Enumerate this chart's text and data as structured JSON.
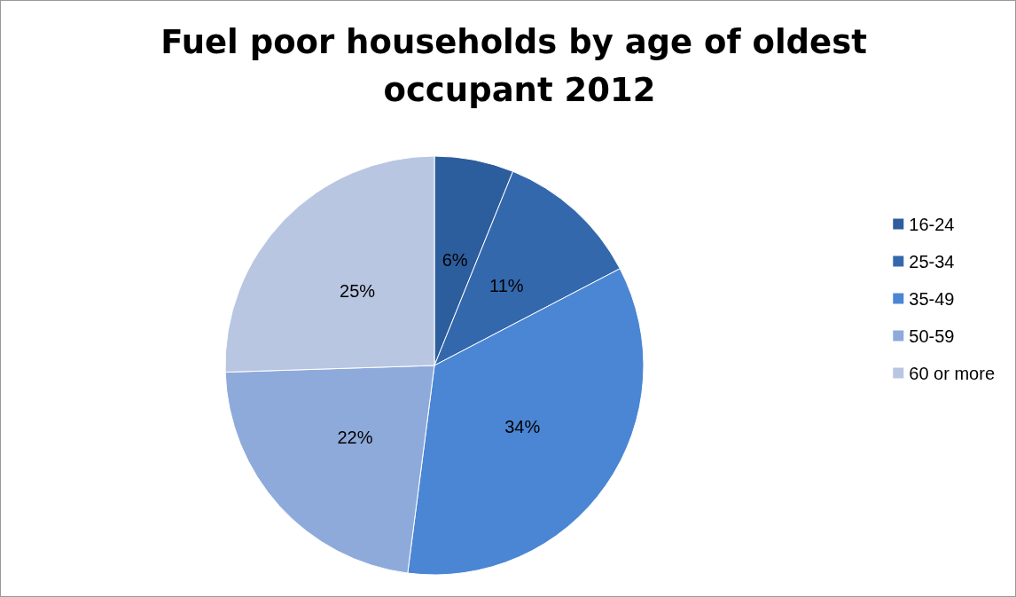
{
  "chart_data": {
    "type": "pie",
    "title": "Fuel poor households by age of oldest occupant 2012",
    "categories": [
      "16-24",
      "25-34",
      "35-49",
      "50-59",
      "60 or more"
    ],
    "values": [
      6,
      11,
      34,
      22,
      25
    ],
    "colors": [
      "#2c5d9c",
      "#3468ad",
      "#4a86d4",
      "#8eaadb",
      "#b8c6e2"
    ],
    "value_labels": [
      "6%",
      "11%",
      "34%",
      "22%",
      "25%"
    ],
    "legend": "right"
  }
}
